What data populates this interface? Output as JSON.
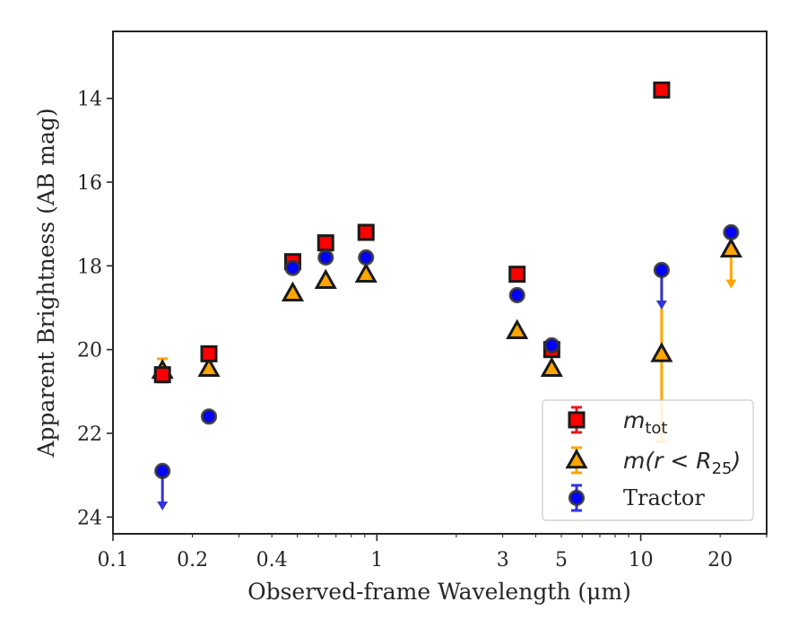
{
  "chart_data": {
    "type": "scatter",
    "xlabel": "Observed-frame Wavelength (μm)",
    "ylabel": "Apparent Brightness (AB mag)",
    "xscale": "log",
    "xlim": [
      0.1,
      30
    ],
    "ylim": [
      24.4,
      12.4
    ],
    "x_ticks": [
      0.1,
      0.2,
      0.4,
      1,
      3,
      5,
      10,
      20
    ],
    "x_tick_labels": [
      "0.1",
      "0.2",
      "0.4",
      "1",
      "3",
      "5",
      "10",
      "20"
    ],
    "y_ticks": [
      14,
      16,
      18,
      20,
      22,
      24
    ],
    "y_tick_labels": [
      "14",
      "16",
      "18",
      "20",
      "22",
      "24"
    ],
    "legend_position": "lower-right",
    "series": [
      {
        "name": "m_tot",
        "label_main": "m",
        "label_sub": "tot",
        "marker": "square",
        "face_color": "#ff0000",
        "error_color": "#e41a1c",
        "points": [
          {
            "x": 0.154,
            "y": 20.6
          },
          {
            "x": 0.231,
            "y": 20.1
          },
          {
            "x": 0.48,
            "y": 17.9
          },
          {
            "x": 0.64,
            "y": 17.45
          },
          {
            "x": 0.91,
            "y": 17.2
          },
          {
            "x": 3.4,
            "y": 18.2
          },
          {
            "x": 4.6,
            "y": 20.0
          },
          {
            "x": 12.0,
            "y": 13.8
          }
        ]
      },
      {
        "name": "m(r < R25)",
        "label_main": "m(r < R",
        "label_sub": "25",
        "label_end": ")",
        "marker": "triangle",
        "face_color": "#ffa500",
        "error_color": "#ffa500",
        "points": [
          {
            "x": 0.154,
            "y": 20.5,
            "yerr": 0.28
          },
          {
            "x": 0.231,
            "y": 20.45
          },
          {
            "x": 0.48,
            "y": 18.65
          },
          {
            "x": 0.64,
            "y": 18.35
          },
          {
            "x": 0.91,
            "y": 18.2
          },
          {
            "x": 3.4,
            "y": 19.55
          },
          {
            "x": 4.6,
            "y": 20.45
          },
          {
            "x": 12.0,
            "y": 20.1,
            "yerr": 2.1
          },
          {
            "x": 22.0,
            "y": 17.6,
            "upper_limit": true
          }
        ]
      },
      {
        "name": "Tractor",
        "marker": "circle",
        "face_color": "#0000ff",
        "error_color": "#3333dd",
        "points": [
          {
            "x": 0.154,
            "y": 22.9,
            "upper_limit": true
          },
          {
            "x": 0.231,
            "y": 21.6
          },
          {
            "x": 0.48,
            "y": 18.05
          },
          {
            "x": 0.64,
            "y": 17.8
          },
          {
            "x": 0.91,
            "y": 17.8
          },
          {
            "x": 3.4,
            "y": 18.7
          },
          {
            "x": 4.6,
            "y": 19.9
          },
          {
            "x": 12.0,
            "y": 18.1,
            "upper_limit": true
          },
          {
            "x": 22.0,
            "y": 17.2
          }
        ]
      }
    ]
  }
}
